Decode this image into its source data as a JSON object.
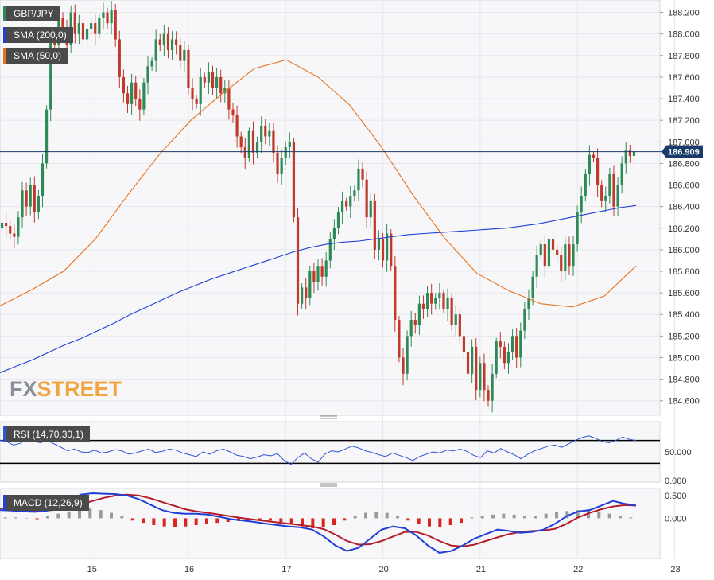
{
  "chart_data": {
    "type": "candlestick",
    "symbol": "GBP/JPY",
    "timeframe_note": "hourly candles",
    "main": {
      "ylim": [
        184.48,
        188.3
      ],
      "yticks": [
        184.6,
        184.8,
        185.0,
        185.2,
        185.4,
        185.6,
        185.8,
        186.0,
        186.2,
        186.4,
        186.6,
        186.8,
        187.0,
        187.2,
        187.4,
        187.6,
        187.8,
        188.0,
        188.2
      ],
      "ytick_labels": [
        "184.600",
        "184.800",
        "185.000",
        "185.200",
        "185.400",
        "185.600",
        "185.800",
        "186.000",
        "186.200",
        "186.400",
        "186.600",
        "186.800",
        "187.000",
        "187.200",
        "187.400",
        "187.600",
        "187.800",
        "188.000",
        "188.200"
      ],
      "last_price": 186.909,
      "last_price_label": "186.909",
      "grid": true
    },
    "xticks": [
      {
        "label": "15",
        "t": 22
      },
      {
        "label": "16",
        "t": 46
      },
      {
        "label": "17",
        "t": 70
      },
      {
        "label": "20",
        "t": 94
      },
      {
        "label": "21",
        "t": 118
      },
      {
        "label": "22",
        "t": 142
      },
      {
        "label": "23",
        "t": 166
      }
    ],
    "candles_close": [
      186.25,
      186.22,
      186.15,
      186.12,
      186.3,
      186.55,
      186.4,
      186.6,
      186.35,
      186.5,
      186.8,
      187.3,
      187.95,
      187.9,
      188.15,
      188.05,
      187.9,
      188.2,
      188.0,
      188.1,
      187.95,
      188.05,
      188.1,
      188.0,
      188.15,
      188.2,
      188.1,
      188.22,
      187.95,
      187.6,
      187.45,
      187.35,
      187.55,
      187.4,
      187.3,
      187.55,
      187.7,
      187.75,
      187.95,
      187.9,
      188.0,
      187.85,
      187.95,
      187.9,
      187.75,
      187.85,
      187.5,
      187.4,
      187.35,
      187.6,
      187.55,
      187.65,
      187.5,
      187.6,
      187.45,
      187.5,
      187.3,
      187.25,
      187.05,
      186.95,
      186.85,
      187.1,
      186.9,
      187.0,
      187.15,
      187.05,
      187.1,
      186.9,
      186.7,
      186.85,
      186.95,
      187.0,
      186.3,
      185.5,
      185.65,
      185.55,
      185.8,
      185.7,
      185.85,
      185.75,
      185.9,
      186.1,
      186.2,
      186.35,
      186.45,
      186.4,
      186.5,
      186.55,
      186.75,
      186.65,
      186.3,
      186.45,
      186.0,
      186.1,
      185.9,
      186.15,
      185.85,
      185.35,
      185.0,
      184.85,
      185.2,
      185.35,
      185.3,
      185.5,
      185.45,
      185.6,
      185.5,
      185.55,
      185.6,
      185.45,
      185.55,
      185.3,
      185.4,
      185.2,
      185.05,
      184.85,
      185.1,
      184.7,
      184.95,
      184.7,
      184.6,
      184.85,
      185.15,
      185.1,
      184.95,
      185.05,
      185.2,
      185.0,
      185.25,
      185.45,
      185.55,
      185.75,
      185.95,
      186.05,
      185.85,
      186.1,
      186.0,
      185.95,
      185.8,
      186.05,
      185.85,
      186.05,
      186.35,
      186.5,
      186.7,
      186.88,
      186.85,
      186.6,
      186.45,
      186.5,
      186.7,
      186.4,
      186.6,
      186.8,
      186.92,
      186.87,
      186.91
    ],
    "sma200": [
      184.86,
      184.92,
      184.98,
      185.05,
      185.12,
      185.18,
      185.25,
      185.32,
      185.4,
      185.47,
      185.54,
      185.61,
      185.67,
      185.73,
      185.78,
      185.83,
      185.88,
      185.93,
      185.98,
      186.02,
      186.05,
      186.07,
      186.08,
      186.1,
      186.12,
      186.14,
      186.15,
      186.16,
      186.17,
      186.18,
      186.19,
      186.2,
      186.22,
      186.24,
      186.27,
      186.3,
      186.33,
      186.36,
      186.39,
      186.41
    ],
    "sma50": [
      185.48,
      185.63,
      185.8,
      186.1,
      186.5,
      186.88,
      187.2,
      187.45,
      187.68,
      187.76,
      187.6,
      187.34,
      186.95,
      186.5,
      186.1,
      185.78,
      185.62,
      185.5,
      185.47,
      185.57,
      185.85
    ],
    "rsi": {
      "params": "RSI (14,70,30,1)",
      "ylim": [
        0,
        100
      ],
      "levels": [
        70,
        30
      ],
      "tick_labels": [
        "50.000",
        "0.000"
      ],
      "values": [
        70,
        68,
        62,
        65,
        72,
        68,
        66,
        70,
        64,
        58,
        52,
        55,
        50,
        49,
        53,
        48,
        50,
        54,
        52,
        46,
        48,
        52,
        55,
        49,
        51,
        55,
        53,
        48,
        45,
        42,
        50,
        46,
        52,
        55,
        50,
        44,
        42,
        38,
        41,
        45,
        43,
        47,
        35,
        28,
        40,
        48,
        38,
        32,
        46,
        52,
        50,
        55,
        60,
        57,
        52,
        49,
        45,
        42,
        48,
        44,
        40,
        35,
        42,
        46,
        50,
        48,
        53,
        52,
        55,
        51,
        44,
        40,
        52,
        48,
        56,
        50,
        45,
        38,
        46,
        52,
        56,
        60,
        62,
        58,
        64,
        70,
        75,
        78,
        74,
        68,
        66,
        70,
        76,
        72,
        70
      ]
    },
    "macd": {
      "params": "MACD (12,26,9)",
      "ylim": [
        -0.85,
        0.62
      ],
      "tick_labels": [
        "0.500",
        "0.000"
      ],
      "tick_values": [
        0.5,
        0.0
      ],
      "macd": [
        0.18,
        0.17,
        0.15,
        0.14,
        0.16,
        0.25,
        0.4,
        0.52,
        0.55,
        0.54,
        0.53,
        0.5,
        0.42,
        0.3,
        0.18,
        0.12,
        0.1,
        0.1,
        0.08,
        0.03,
        -0.02,
        -0.05,
        -0.08,
        -0.12,
        -0.15,
        -0.18,
        -0.2,
        -0.25,
        -0.4,
        -0.6,
        -0.72,
        -0.65,
        -0.45,
        -0.25,
        -0.18,
        -0.22,
        -0.38,
        -0.6,
        -0.76,
        -0.72,
        -0.6,
        -0.45,
        -0.35,
        -0.25,
        -0.28,
        -0.32,
        -0.3,
        -0.25,
        -0.12,
        0.05,
        0.15,
        0.18,
        0.28,
        0.38,
        0.32,
        0.28
      ],
      "signal": [
        0.22,
        0.2,
        0.18,
        0.17,
        0.17,
        0.19,
        0.23,
        0.3,
        0.38,
        0.45,
        0.5,
        0.52,
        0.5,
        0.44,
        0.36,
        0.28,
        0.2,
        0.15,
        0.12,
        0.08,
        0.04,
        0.0,
        -0.03,
        -0.06,
        -0.09,
        -0.12,
        -0.15,
        -0.18,
        -0.24,
        -0.36,
        -0.5,
        -0.58,
        -0.57,
        -0.5,
        -0.4,
        -0.3,
        -0.3,
        -0.38,
        -0.5,
        -0.6,
        -0.62,
        -0.58,
        -0.5,
        -0.42,
        -0.35,
        -0.3,
        -0.28,
        -0.27,
        -0.23,
        -0.12,
        0.02,
        0.12,
        0.2,
        0.26,
        0.29,
        0.28
      ],
      "hist": [
        0.02,
        0.02,
        0.0,
        -0.02,
        0.05,
        0.1,
        0.15,
        0.2,
        0.22,
        0.18,
        0.12,
        0.05,
        -0.05,
        -0.1,
        -0.15,
        -0.18,
        -0.2,
        -0.18,
        -0.15,
        -0.12,
        -0.1,
        -0.08,
        -0.06,
        -0.05,
        -0.04,
        -0.05,
        -0.08,
        -0.12,
        -0.18,
        -0.22,
        -0.2,
        -0.15,
        -0.05,
        0.05,
        0.12,
        0.15,
        0.12,
        0.05,
        -0.05,
        -0.12,
        -0.18,
        -0.2,
        -0.15,
        -0.1,
        0.02,
        0.05,
        0.08,
        0.1,
        0.08,
        0.05,
        0.06,
        0.1,
        0.14,
        0.16,
        0.18,
        0.2,
        0.15,
        0.1,
        0.05,
        0.02
      ]
    },
    "legend": [
      {
        "label": "GBP/JPY",
        "color": "#2e8b57"
      },
      {
        "label": "SMA (200,0)",
        "color": "#1f3fd6"
      },
      {
        "label": "SMA (50,0)",
        "color": "#e8731e"
      }
    ]
  },
  "watermark": {
    "part1": "FX",
    "part2": "STREET"
  },
  "colors": {
    "up": "#2e8b57",
    "down": "#c0392b",
    "sma200": "#1f3fd6",
    "sma50": "#e8731e",
    "rsi": "#2e54d6",
    "macd": "#1f3fd6",
    "signal": "#b51d2a",
    "hist_pos": "#9a9a9a",
    "hist_neg": "#d9251d",
    "last_price_bg": "#1a3a6b"
  }
}
